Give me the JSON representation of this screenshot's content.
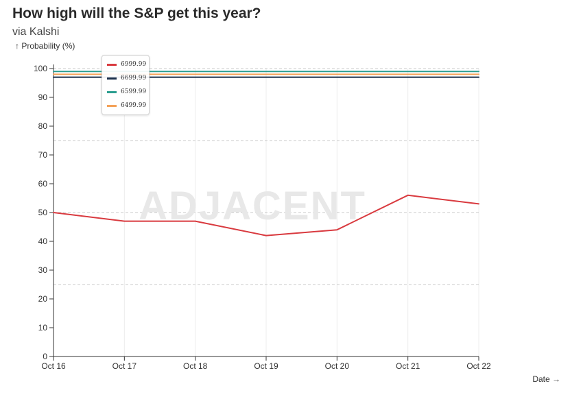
{
  "chart_data": {
    "type": "line",
    "title": "How high will the S&P get this year?",
    "subtitle": "via Kalshi",
    "ylabel": "↑ Probability (%)",
    "xlabel": "Date →",
    "watermark": "ADJACENT",
    "categories": [
      "Oct 16",
      "Oct 17",
      "Oct 18",
      "Oct 19",
      "Oct 20",
      "Oct 21",
      "Oct 22"
    ],
    "ylim": [
      0,
      100
    ],
    "yticks": [
      0,
      10,
      20,
      30,
      40,
      50,
      60,
      70,
      80,
      90,
      100
    ],
    "reference_lines": [
      25,
      50,
      75,
      100
    ],
    "legend_position": "top-left",
    "series": [
      {
        "name": "6999.99",
        "color": "#d93a3f",
        "values": [
          50,
          47,
          47,
          42,
          44,
          56,
          53
        ]
      },
      {
        "name": "6699.99",
        "color": "#1b2f4a",
        "values": [
          97,
          97,
          97,
          97,
          97,
          97,
          97
        ]
      },
      {
        "name": "6599.99",
        "color": "#2a9d8f",
        "values": [
          99,
          99,
          99,
          99,
          99,
          99,
          99
        ]
      },
      {
        "name": "6499.99",
        "color": "#f4a259",
        "values": [
          98,
          98,
          98,
          98,
          98,
          98,
          98
        ]
      }
    ]
  }
}
